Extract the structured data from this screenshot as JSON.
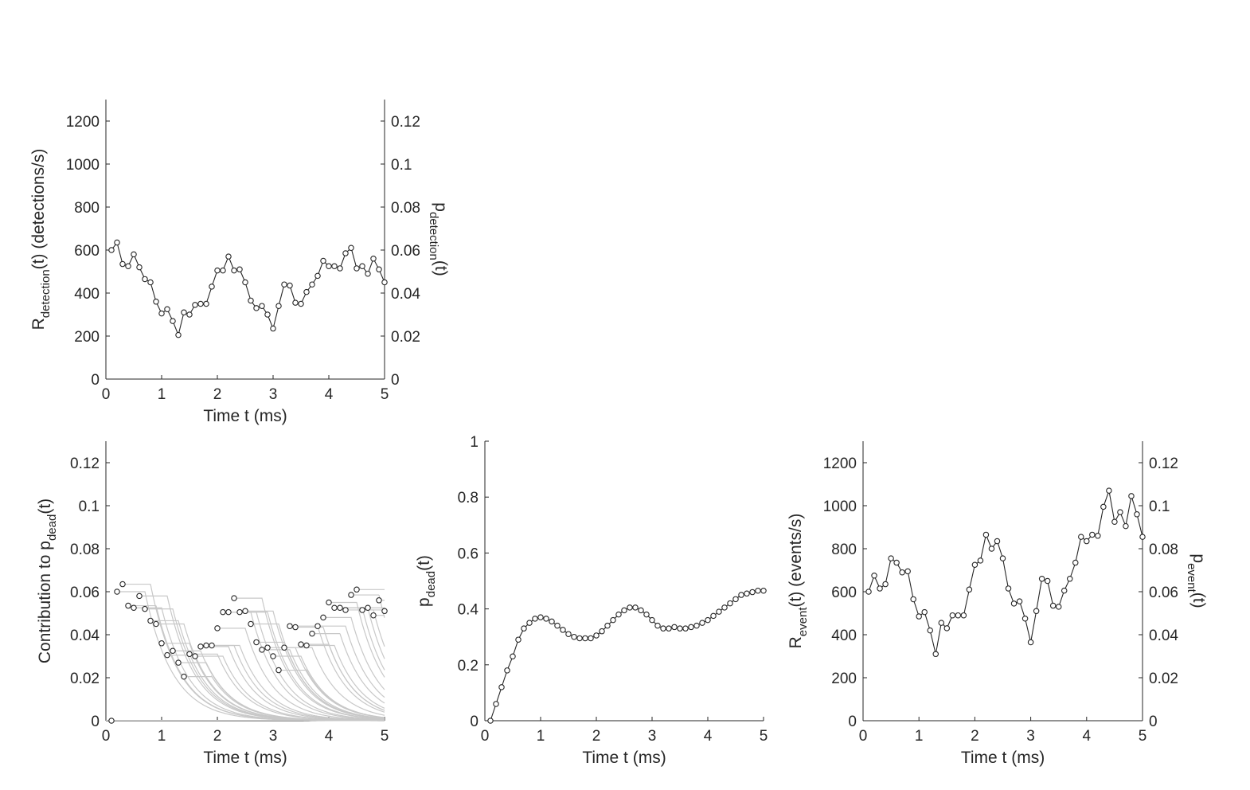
{
  "chart_data": [
    {
      "id": "detection",
      "type": "line",
      "xlabel": "Time t (ms)",
      "ylabel": {
        "main": "R",
        "sub": "detection",
        "rest": "(t) (detections/s)"
      },
      "y2label": {
        "main": "p",
        "sub": "detection",
        "rest": "(t)"
      },
      "xlim": [
        0,
        5
      ],
      "ylim": [
        0,
        1300
      ],
      "y2lim": [
        0,
        0.13
      ],
      "xticks": [
        0,
        1,
        2,
        3,
        4,
        5
      ],
      "yticks": [
        0,
        200,
        400,
        600,
        800,
        1000,
        1200
      ],
      "y2ticks": [
        "0",
        "0.02",
        "0.04",
        "0.06",
        "0.08",
        "0.1",
        "0.12"
      ],
      "grid": false,
      "series": [
        {
          "color": "#262626",
          "marker": "circle",
          "x": [
            0.1,
            0.2,
            0.3,
            0.4,
            0.5,
            0.6,
            0.7,
            0.8,
            0.9,
            1.0,
            1.1,
            1.2,
            1.3,
            1.4,
            1.5,
            1.6,
            1.7,
            1.8,
            1.9,
            2.0,
            2.1,
            2.2,
            2.3,
            2.4,
            2.5,
            2.6,
            2.7,
            2.8,
            2.9,
            3.0,
            3.1,
            3.2,
            3.3,
            3.4,
            3.5,
            3.6,
            3.7,
            3.8,
            3.9,
            4.0,
            4.1,
            4.2,
            4.3,
            4.4,
            4.5,
            4.6,
            4.7,
            4.8,
            4.9,
            5.0
          ],
          "y": [
            600,
            635,
            535,
            525,
            580,
            520,
            465,
            450,
            360,
            305,
            325,
            270,
            205,
            310,
            300,
            345,
            350,
            350,
            430,
            505,
            505,
            570,
            505,
            510,
            450,
            365,
            330,
            340,
            300,
            235,
            340,
            440,
            435,
            355,
            350,
            405,
            440,
            480,
            550,
            525,
            525,
            515,
            585,
            610,
            515,
            525,
            490,
            560,
            510,
            450
          ]
        }
      ]
    },
    {
      "id": "contribution",
      "type": "line",
      "xlabel": "Time t (ms)",
      "ylabel": {
        "main": "Contribution to p",
        "sub": "dead",
        "rest": "(t)"
      },
      "xlim": [
        0,
        5
      ],
      "ylim": [
        0,
        0.13
      ],
      "xticks": [
        0,
        1,
        2,
        3,
        4,
        5
      ],
      "yticks": [
        "0",
        "0.02",
        "0.04",
        "0.06",
        "0.08",
        "0.1",
        "0.12"
      ],
      "grid": false,
      "series": [
        {
          "color": "#262626",
          "marker": "circle",
          "line": "none",
          "x": [
            0.1,
            0.2,
            0.3,
            0.4,
            0.5,
            0.6,
            0.7,
            0.8,
            0.9,
            1.0,
            1.1,
            1.2,
            1.3,
            1.4,
            1.5,
            1.6,
            1.7,
            1.8,
            1.9,
            2.0,
            2.1,
            2.2,
            2.3,
            2.4,
            2.5,
            2.6,
            2.7,
            2.8,
            2.9,
            3.0,
            3.1,
            3.2,
            3.3,
            3.4,
            3.5,
            3.6,
            3.7,
            3.8,
            3.9,
            4.0,
            4.1,
            4.2,
            4.3,
            4.4,
            4.5,
            4.6,
            4.7,
            4.8,
            4.9,
            5.0
          ],
          "y": [
            0.0,
            0.06,
            0.0635,
            0.0535,
            0.0525,
            0.058,
            0.052,
            0.0465,
            0.045,
            0.036,
            0.0305,
            0.0325,
            0.027,
            0.0205,
            0.031,
            0.03,
            0.0345,
            0.035,
            0.035,
            0.043,
            0.0505,
            0.0505,
            0.057,
            0.0505,
            0.051,
            0.045,
            0.0365,
            0.033,
            0.034,
            0.03,
            0.0235,
            0.034,
            0.044,
            0.0435,
            0.0355,
            0.035,
            0.0405,
            0.044,
            0.048,
            0.055,
            0.0525,
            0.0525,
            0.0515,
            0.0585,
            0.061,
            0.0515,
            0.0525,
            0.049,
            0.056,
            0.051
          ]
        },
        {
          "name_hidden": "decay curves",
          "color": "#c8c8c8",
          "note_type": "decay-per-event",
          "decay_tau_ms": 0.5,
          "hold_ms": 0.5
        }
      ]
    },
    {
      "id": "pdead",
      "type": "line",
      "xlabel": "Time t (ms)",
      "ylabel": {
        "main": "p",
        "sub": "dead",
        "rest": "(t)"
      },
      "xlim": [
        0,
        5
      ],
      "ylim": [
        0,
        1
      ],
      "xticks": [
        0,
        1,
        2,
        3,
        4,
        5
      ],
      "yticks": [
        "0",
        "0.2",
        "0.4",
        "0.6",
        "0.8",
        "1"
      ],
      "grid": false,
      "series": [
        {
          "color": "#262626",
          "marker": "circle",
          "x": [
            0.1,
            0.2,
            0.3,
            0.4,
            0.5,
            0.6,
            0.7,
            0.8,
            0.9,
            1.0,
            1.1,
            1.2,
            1.3,
            1.4,
            1.5,
            1.6,
            1.7,
            1.8,
            1.9,
            2.0,
            2.1,
            2.2,
            2.3,
            2.4,
            2.5,
            2.6,
            2.7,
            2.8,
            2.9,
            3.0,
            3.1,
            3.2,
            3.3,
            3.4,
            3.5,
            3.6,
            3.7,
            3.8,
            3.9,
            4.0,
            4.1,
            4.2,
            4.3,
            4.4,
            4.5,
            4.6,
            4.7,
            4.8,
            4.9,
            5.0
          ],
          "y": [
            0.0,
            0.06,
            0.12,
            0.18,
            0.23,
            0.29,
            0.33,
            0.35,
            0.365,
            0.37,
            0.365,
            0.355,
            0.34,
            0.325,
            0.31,
            0.3,
            0.295,
            0.295,
            0.295,
            0.305,
            0.32,
            0.34,
            0.36,
            0.38,
            0.395,
            0.405,
            0.405,
            0.395,
            0.38,
            0.36,
            0.34,
            0.33,
            0.33,
            0.335,
            0.33,
            0.33,
            0.335,
            0.34,
            0.35,
            0.36,
            0.375,
            0.39,
            0.405,
            0.42,
            0.435,
            0.45,
            0.455,
            0.46,
            0.465,
            0.465
          ]
        }
      ]
    },
    {
      "id": "event",
      "type": "line",
      "xlabel": "Time t (ms)",
      "ylabel": {
        "main": "R",
        "sub": "event",
        "rest": "(t) (events/s)"
      },
      "y2label": {
        "main": "p",
        "sub": "event",
        "rest": "(t)"
      },
      "xlim": [
        0,
        5
      ],
      "ylim": [
        0,
        1300
      ],
      "y2lim": [
        0,
        0.13
      ],
      "xticks": [
        0,
        1,
        2,
        3,
        4,
        5
      ],
      "yticks": [
        0,
        200,
        400,
        600,
        800,
        1000,
        1200
      ],
      "y2ticks": [
        "0",
        "0.02",
        "0.04",
        "0.06",
        "0.08",
        "0.1",
        "0.12"
      ],
      "grid": false,
      "series": [
        {
          "color": "#262626",
          "marker": "circle",
          "x": [
            0.1,
            0.2,
            0.3,
            0.4,
            0.5,
            0.6,
            0.7,
            0.8,
            0.9,
            1.0,
            1.1,
            1.2,
            1.3,
            1.4,
            1.5,
            1.6,
            1.7,
            1.8,
            1.9,
            2.0,
            2.1,
            2.2,
            2.3,
            2.4,
            2.5,
            2.6,
            2.7,
            2.8,
            2.9,
            3.0,
            3.1,
            3.2,
            3.3,
            3.4,
            3.5,
            3.6,
            3.7,
            3.8,
            3.9,
            4.0,
            4.1,
            4.2,
            4.3,
            4.4,
            4.5,
            4.6,
            4.7,
            4.8,
            4.9,
            5.0
          ],
          "y": [
            600,
            675,
            615,
            635,
            755,
            735,
            690,
            695,
            565,
            485,
            505,
            420,
            310,
            455,
            430,
            490,
            490,
            490,
            610,
            725,
            745,
            865,
            800,
            835,
            755,
            615,
            545,
            555,
            475,
            365,
            510,
            660,
            650,
            535,
            530,
            605,
            660,
            735,
            855,
            835,
            865,
            860,
            995,
            1070,
            925,
            970,
            905,
            1045,
            960,
            855
          ]
        }
      ]
    }
  ]
}
